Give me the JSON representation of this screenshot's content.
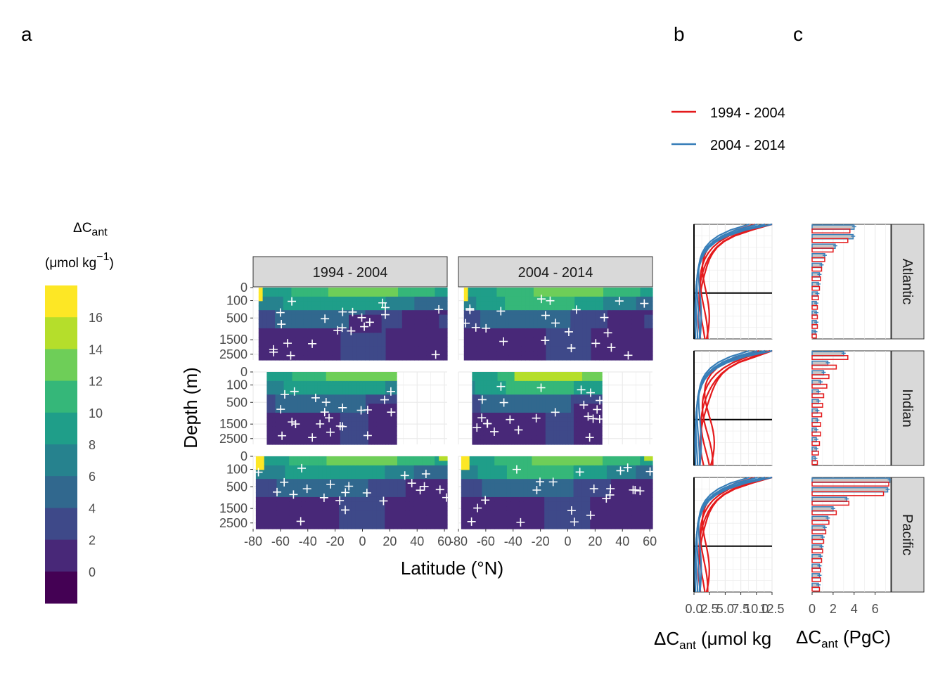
{
  "panel_labels": {
    "a": "a",
    "b": "b",
    "c": "c"
  },
  "colorbar": {
    "title_main": "ΔC",
    "title_sub": "ant",
    "unit_pre": "(μmol kg",
    "unit_sup": "−1",
    "unit_post": ")",
    "levels": [
      "16",
      "14",
      "12",
      "10",
      "8",
      "6",
      "4",
      "2",
      "0"
    ],
    "colors": [
      "#fde725",
      "#b5de2b",
      "#6ece58",
      "#35b779",
      "#1f9e89",
      "#26828e",
      "#31688e",
      "#3e4989",
      "#482878",
      "#440154"
    ]
  },
  "colors": {
    "period1": "#e41a1c",
    "period2": "#377eb8",
    "strip_bg": "#d9d9d9",
    "strip_border": "#333333",
    "grid": "#ebebeb"
  },
  "chart_data": [
    {
      "type": "heatmap",
      "panel": "a",
      "facets_cols": [
        "1994 - 2004",
        "2004 - 2014"
      ],
      "facets_rows": [
        "Atlantic",
        "Indian",
        "Pacific"
      ],
      "xlabel": "Latitude (°N)",
      "ylabel": "Depth (m)",
      "xticks": [
        "-80",
        "-60",
        "-40",
        "-20",
        "0",
        "20",
        "40",
        "60"
      ],
      "yticks": [
        "0",
        "100",
        "500",
        "1500",
        "2500"
      ],
      "xlim": [
        -80,
        62
      ],
      "lat_extent": {
        "Atlantic": [
          -76,
          62
        ],
        "Indian": [
          -70,
          25
        ],
        "Pacific": [
          -78,
          62
        ]
      }
    },
    {
      "type": "line",
      "panel": "b",
      "xlabel_main": "ΔC",
      "xlabel_sub": "ant",
      "xlabel_post": " (μmol kg",
      "xticks": [
        "0.0",
        "2.5",
        "5.0",
        "7.5",
        "10.0",
        "12.5"
      ],
      "xlim": [
        0,
        12.5
      ],
      "legend": [
        {
          "name": "1994 - 2004"
        },
        {
          "name": "2004 - 2014"
        }
      ]
    },
    {
      "type": "bar",
      "panel": "c",
      "xlabel_main": "ΔC",
      "xlabel_sub": "ant",
      "xlabel_post": " (PgC)",
      "xticks": [
        "0",
        "2",
        "4",
        "6"
      ],
      "xlim": [
        0,
        7.5
      ],
      "basins": [
        "Atlantic",
        "Indian",
        "Pacific"
      ],
      "series": [
        {
          "name": "1994 - 2004",
          "values": {
            "Atlantic": [
              3.6,
              3.4,
              2.0,
              1.2,
              0.9,
              0.8,
              0.7,
              0.6,
              0.5,
              0.5,
              0.5,
              0.4
            ],
            "Indian": [
              3.4,
              2.3,
              1.6,
              1.4,
              1.1,
              1.0,
              0.9,
              0.8,
              0.8,
              0.7,
              0.6,
              0.5
            ],
            "Pacific": [
              7.3,
              6.8,
              3.5,
              2.3,
              1.6,
              1.3,
              1.1,
              1.0,
              0.9,
              0.8,
              0.8,
              0.7
            ]
          }
        },
        {
          "name": "2004 - 2014",
          "values": {
            "Atlantic": [
              4.0,
              3.9,
              2.2,
              1.2,
              0.9,
              0.7,
              0.6,
              0.5,
              0.4,
              0.4,
              0.4,
              0.3
            ],
            "Indian": [
              3.0,
              1.5,
              1.1,
              0.8,
              0.6,
              0.6,
              0.5,
              0.5,
              0.4,
              0.4,
              0.4,
              0.3
            ],
            "Pacific": [
              7.4,
              7.2,
              3.3,
              2.0,
              1.5,
              1.2,
              1.0,
              0.9,
              0.8,
              0.7,
              0.7,
              0.6
            ]
          }
        }
      ]
    }
  ]
}
